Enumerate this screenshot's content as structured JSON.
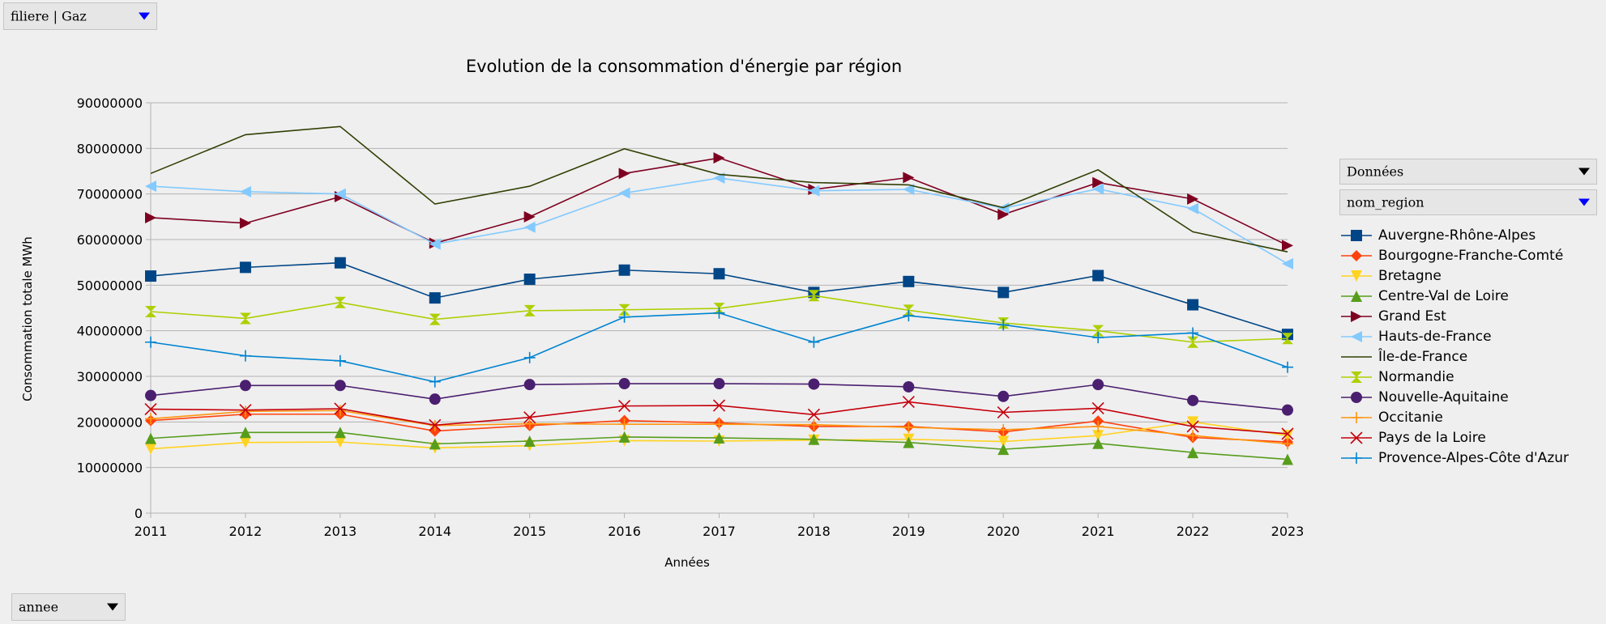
{
  "filters": {
    "filiere": "filiere | Gaz",
    "donnees": "Données",
    "nom_region": "nom_region",
    "annee": "annee"
  },
  "chart_data": {
    "type": "line",
    "title": "Evolution de la consommation d'énergie par région",
    "xlabel": "Années",
    "ylabel": "Consommation totale  MWh",
    "ylim": [
      0,
      90000000
    ],
    "yticks": [
      "0",
      "10000000",
      "20000000",
      "30000000",
      "40000000",
      "50000000",
      "60000000",
      "70000000",
      "80000000",
      "90000000"
    ],
    "grid": true,
    "legend_position": "right",
    "categories": [
      "2011",
      "2012",
      "2013",
      "2014",
      "2015",
      "2016",
      "2017",
      "2018",
      "2019",
      "2020",
      "2021",
      "2022",
      "2023"
    ],
    "series": [
      {
        "name": "Auvergne-Rhône-Alpes",
        "color": "#004586",
        "marker": "square",
        "values": [
          52000000,
          53900000,
          54900000,
          47200000,
          51300000,
          53300000,
          52500000,
          48400000,
          50800000,
          48400000,
          52100000,
          45700000,
          39200000
        ]
      },
      {
        "name": "Bourgogne-Franche-Comté",
        "color": "#ff420e",
        "marker": "diamond",
        "values": [
          20300000,
          21700000,
          21700000,
          18000000,
          19200000,
          20300000,
          19800000,
          19000000,
          19000000,
          17800000,
          20200000,
          16600000,
          15600000
        ]
      },
      {
        "name": "Bretagne",
        "color": "#ffd320",
        "marker": "triangle-down",
        "values": [
          14100000,
          15500000,
          15600000,
          14300000,
          14800000,
          15900000,
          15800000,
          16000000,
          16200000,
          15700000,
          17000000,
          20000000,
          17000000
        ]
      },
      {
        "name": "Centre-Val de Loire",
        "color": "#579d1c",
        "marker": "triangle-up",
        "values": [
          16400000,
          17700000,
          17700000,
          15200000,
          15800000,
          16700000,
          16500000,
          16200000,
          15500000,
          14000000,
          15300000,
          13300000,
          11800000
        ]
      },
      {
        "name": "Grand Est",
        "color": "#7e0021",
        "marker": "triangle-right",
        "values": [
          64800000,
          63600000,
          69400000,
          59200000,
          65000000,
          74500000,
          77900000,
          71000000,
          73600000,
          65500000,
          72500000,
          68900000,
          58700000
        ]
      },
      {
        "name": "Hauts-de-France",
        "color": "#83caff",
        "marker": "triangle-left",
        "values": [
          71700000,
          70500000,
          70000000,
          59000000,
          62700000,
          70200000,
          73500000,
          70700000,
          71000000,
          66900000,
          71100000,
          66800000,
          54700000
        ]
      },
      {
        "name": "Île-de-France",
        "color": "#314004",
        "marker": "bowtie",
        "values": [
          74500000,
          83000000,
          84800000,
          67800000,
          71700000,
          79900000,
          74300000,
          72500000,
          72000000,
          67000000,
          75300000,
          61700000,
          57300000
        ]
      },
      {
        "name": "Normandie",
        "color": "#aecf00",
        "marker": "hourglass",
        "values": [
          44200000,
          42700000,
          46200000,
          42500000,
          44400000,
          44600000,
          44900000,
          47700000,
          44500000,
          41700000,
          40000000,
          37500000,
          38300000
        ]
      },
      {
        "name": "Nouvelle-Aquitaine",
        "color": "#4b1f6f",
        "marker": "circle",
        "values": [
          25800000,
          28000000,
          28000000,
          25000000,
          28200000,
          28400000,
          28400000,
          28300000,
          27700000,
          25600000,
          28200000,
          24700000,
          22600000
        ]
      },
      {
        "name": "Occitanie",
        "color": "#ff950e",
        "marker": "plus",
        "values": [
          20700000,
          22300000,
          22500000,
          19200000,
          19600000,
          19500000,
          19500000,
          19400000,
          18800000,
          18300000,
          19000000,
          17000000,
          15200000
        ]
      },
      {
        "name": "Pays de la Loire",
        "color": "#c5000b",
        "marker": "x",
        "values": [
          22800000,
          22600000,
          22900000,
          19300000,
          21000000,
          23500000,
          23600000,
          21600000,
          24400000,
          22100000,
          23000000,
          19000000,
          17400000
        ]
      },
      {
        "name": "Provence-Alpes-Côte d'Azur",
        "color": "#0084d1",
        "marker": "plus",
        "values": [
          37500000,
          34500000,
          33400000,
          28800000,
          34100000,
          43000000,
          43900000,
          37500000,
          43300000,
          41300000,
          38500000,
          39500000,
          32000000
        ]
      }
    ]
  }
}
